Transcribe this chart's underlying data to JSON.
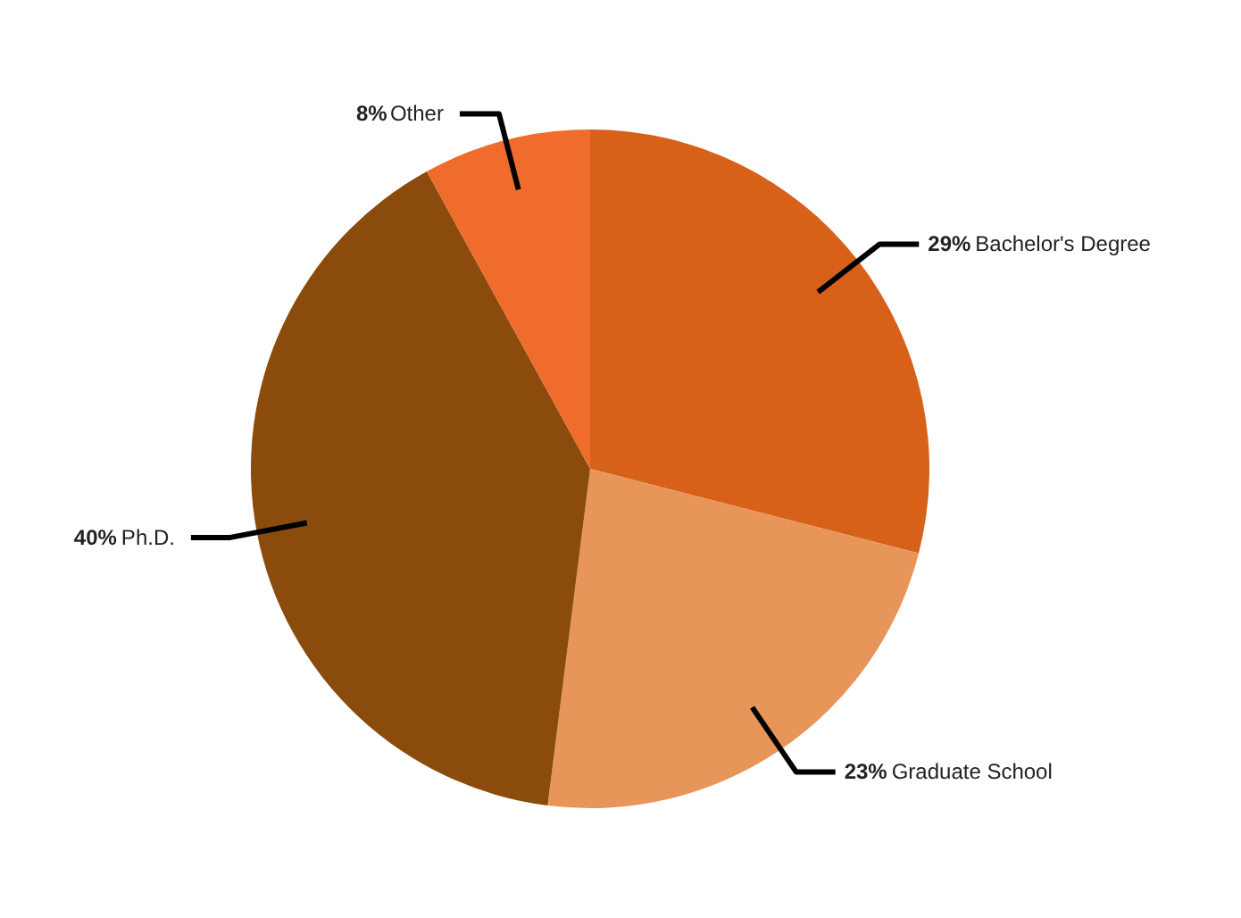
{
  "chart_data": {
    "type": "pie",
    "categories": [
      "Bachelor's Degree",
      "Graduate School",
      "Ph.D.",
      "Other"
    ],
    "values": [
      29,
      23,
      40,
      8
    ],
    "colors": [
      "#d8611a",
      "#e8955a",
      "#8a4b0c",
      "#ef6c2c"
    ],
    "value_labels": [
      "29%",
      "23%",
      "40%",
      "8%"
    ]
  }
}
